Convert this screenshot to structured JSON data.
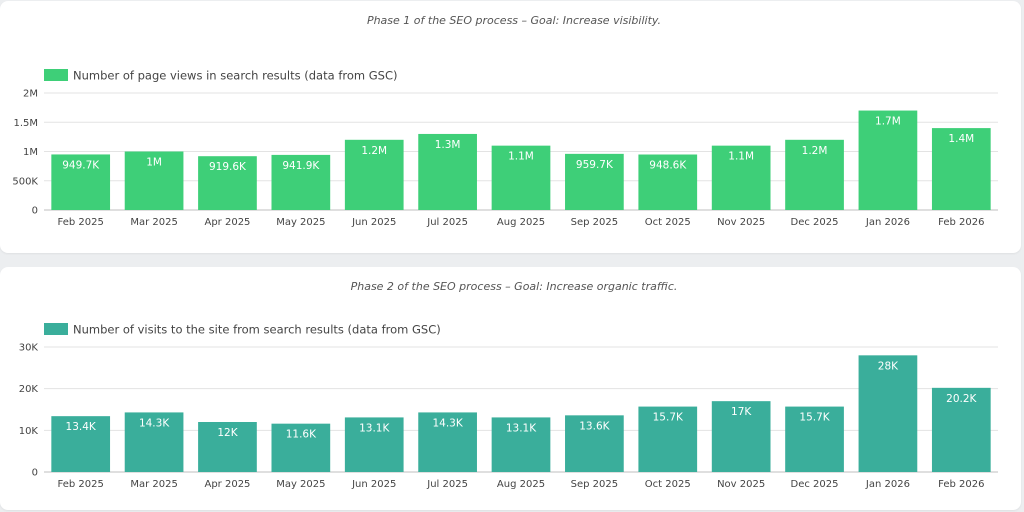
{
  "colors": {
    "chart1_bar": "#3ecf78",
    "chart2_bar": "#3aae9b"
  },
  "chart_data": [
    {
      "type": "bar",
      "title": "Phase 1 of the SEO process – Goal: Increase visibility.",
      "categories": [
        "Feb 2025",
        "Mar 2025",
        "Apr 2025",
        "May 2025",
        "Jun 2025",
        "Jul 2025",
        "Aug 2025",
        "Sep 2025",
        "Oct 2025",
        "Nov 2025",
        "Dec 2025",
        "Jan 2026",
        "Feb 2026"
      ],
      "series": [
        {
          "name": "Number of page views in search results (data from GSC)",
          "values": [
            949700,
            1000000,
            919600,
            941900,
            1200000,
            1300000,
            1100000,
            959700,
            948600,
            1100000,
            1200000,
            1700000,
            1400000
          ],
          "labels": [
            "949.7K",
            "1M",
            "919.6K",
            "941.9K",
            "1.2M",
            "1.3M",
            "1.1M",
            "959.7K",
            "948.6K",
            "1.1M",
            "1.2M",
            "1.7M",
            "1.4M"
          ]
        }
      ],
      "yticks": [
        0,
        500000,
        1000000,
        1500000,
        2000000
      ],
      "ytick_labels": [
        "0",
        "500K",
        "1M",
        "1.5M",
        "2M"
      ],
      "ylim": [
        0,
        2000000
      ],
      "grid": true,
      "legend": "top-left",
      "xlabel": "",
      "ylabel": ""
    },
    {
      "type": "bar",
      "title": "Phase 2 of the SEO process – Goal: Increase organic traffic.",
      "categories": [
        "Feb 2025",
        "Mar 2025",
        "Apr 2025",
        "May 2025",
        "Jun 2025",
        "Jul 2025",
        "Aug 2025",
        "Sep 2025",
        "Oct 2025",
        "Nov 2025",
        "Dec 2025",
        "Jan 2026",
        "Feb 2026"
      ],
      "series": [
        {
          "name": "Number of visits to the site from search results (data from GSC)",
          "values": [
            13400,
            14300,
            12000,
            11600,
            13100,
            14300,
            13100,
            13600,
            15700,
            17000,
            15700,
            28000,
            20200
          ],
          "labels": [
            "13.4K",
            "14.3K",
            "12K",
            "11.6K",
            "13.1K",
            "14.3K",
            "13.1K",
            "13.6K",
            "15.7K",
            "17K",
            "15.7K",
            "28K",
            "20.2K"
          ]
        }
      ],
      "yticks": [
        0,
        10000,
        20000,
        30000
      ],
      "ytick_labels": [
        "0",
        "10K",
        "20K",
        "30K"
      ],
      "ylim": [
        0,
        30000
      ],
      "grid": true,
      "legend": "top-left",
      "xlabel": "",
      "ylabel": ""
    }
  ]
}
